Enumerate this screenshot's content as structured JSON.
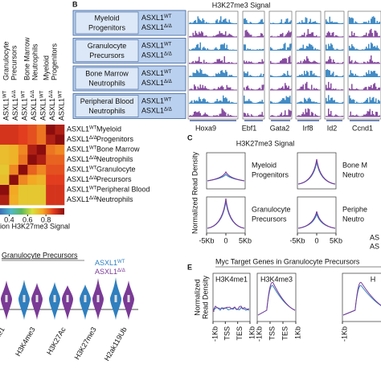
{
  "panel_a": {
    "genotype": {
      "base": "ASXL1",
      "wt": "WT",
      "mut": "Δ/Δ"
    },
    "column_groups": [
      [
        "Granulocyte",
        "Precursors"
      ],
      [
        "Bone Marrow",
        "Neutrophils"
      ],
      [
        "Myeloid",
        "Progenitors"
      ]
    ],
    "row_groups": [
      [
        "Myeloid",
        "Progenitors"
      ],
      [
        "Bone Marrow",
        "Neutrophils"
      ],
      [
        "Granulocyte",
        "Precursors"
      ],
      [
        "Peripheral Blood",
        "Neutrophils"
      ]
    ],
    "heatmap": {
      "values": [
        [
          0.9,
          0.9,
          0.88,
          0.86,
          0.82,
          1.0,
          0.95
        ],
        [
          0.9,
          0.9,
          0.88,
          0.86,
          0.82,
          0.95,
          1.0
        ],
        [
          0.72,
          0.74,
          0.8,
          0.95,
          1.0,
          0.82,
          0.8
        ],
        [
          0.72,
          0.74,
          0.82,
          1.0,
          0.95,
          0.84,
          0.84
        ],
        [
          0.7,
          0.8,
          1.0,
          0.84,
          0.8,
          0.86,
          0.86
        ],
        [
          0.72,
          1.0,
          0.8,
          0.76,
          0.74,
          0.88,
          0.88
        ],
        [
          1.0,
          0.76,
          0.7,
          0.7,
          0.7,
          0.9,
          0.9
        ],
        [
          0.95,
          0.75,
          0.7,
          0.7,
          0.7,
          0.9,
          0.9
        ]
      ],
      "lim": [
        0.3,
        1.0
      ],
      "colors": [
        "#3b6fb6",
        "#4fb7c9",
        "#5cb85c",
        "#d8e03c",
        "#f5a623",
        "#e03a1e",
        "#8b0d0d"
      ]
    },
    "colorbar_ticks": [
      0.4,
      0.6,
      0.8
    ],
    "colorbar_label": "ion H3K27me3 Signal"
  },
  "panel_b": {
    "label": "B",
    "title": "H3K27me3 Signal",
    "cells": [
      [
        "Myeloid",
        "Progenitors"
      ],
      [
        "Granulocyte",
        "Precursors"
      ],
      [
        "Bone Marrow",
        "Neutrophils"
      ],
      [
        "Peripheral Blood",
        "Neutrophils"
      ]
    ],
    "genes": [
      "Hoxa9",
      "Ebf1",
      "Gata2",
      "Irf8",
      "Id2",
      "Ccnd1"
    ]
  },
  "panel_c": {
    "label": "C",
    "title": "H3K27me3 Signal",
    "ylabel": "Normalized Read Density",
    "plots": [
      [
        "Myeloid",
        "Progenitors"
      ],
      [
        "Bone M",
        "Neutro"
      ],
      [
        "Granulocyte",
        "Precursors"
      ],
      [
        "Periphe",
        "Neutro"
      ]
    ],
    "xticks": [
      "-5Kb",
      "0",
      "5Kb"
    ],
    "legend": [
      "AS",
      "AS"
    ]
  },
  "panel_d": {
    "title": "Granulocyte Precursors",
    "xlabels": [
      "me1",
      "H3K4me3",
      "H3K27Ac",
      "H3K27me3",
      "H2ak119Ub"
    ]
  },
  "panel_e": {
    "label": "E",
    "title": "Myc Target Genes in Granulocyte Precursors",
    "ylabel": [
      "Normalized",
      "Read Density"
    ],
    "plots": [
      "H3K4me1",
      "H3K4me3",
      "H"
    ],
    "xticks": [
      "-1Kb",
      "TSS",
      "TES",
      "1Kb"
    ]
  }
}
